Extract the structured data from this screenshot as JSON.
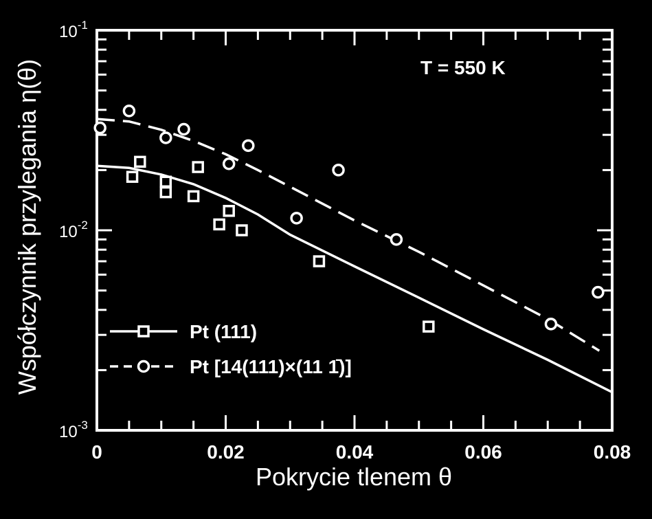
{
  "chart_data": {
    "type": "scatter",
    "title": "",
    "xlabel": "Pokrycie tlenem θ",
    "ylabel": "Współczynnik przylegania η(θ)",
    "annotation": "T = 550 K",
    "xlim": [
      0,
      0.08
    ],
    "ylim": [
      0.001,
      0.1
    ],
    "yscale": "log",
    "grid": false,
    "legend_position": "lower-left",
    "x_ticks": [
      "0",
      "0.02",
      "0.04",
      "0.06",
      "0.08"
    ],
    "x_tick_values": [
      0,
      0.02,
      0.04,
      0.06,
      0.08
    ],
    "y_ticks": [
      {
        "base": "10",
        "exp": "-1",
        "value": 0.1
      },
      {
        "base": "10",
        "exp": "-2",
        "value": 0.01
      },
      {
        "base": "10",
        "exp": "-3",
        "value": 0.001
      }
    ],
    "series": [
      {
        "name": "Pt (111)",
        "marker": "square",
        "line": "solid",
        "points": [
          [
            0.0055,
            0.0185
          ],
          [
            0.0067,
            0.022
          ],
          [
            0.0107,
            0.0175
          ],
          [
            0.0107,
            0.0155
          ],
          [
            0.015,
            0.0148
          ],
          [
            0.0157,
            0.0207
          ],
          [
            0.019,
            0.0107
          ],
          [
            0.0205,
            0.0125
          ],
          [
            0.0225,
            0.01
          ],
          [
            0.0345,
            0.007
          ],
          [
            0.0515,
            0.0033
          ]
        ],
        "fit": [
          [
            0,
            0.021
          ],
          [
            0.005,
            0.0205
          ],
          [
            0.01,
            0.019
          ],
          [
            0.015,
            0.017
          ],
          [
            0.02,
            0.0145
          ],
          [
            0.025,
            0.012
          ],
          [
            0.03,
            0.0095
          ],
          [
            0.04,
            0.0066
          ],
          [
            0.05,
            0.0046
          ],
          [
            0.06,
            0.0032
          ],
          [
            0.07,
            0.00225
          ],
          [
            0.08,
            0.00155
          ]
        ]
      },
      {
        "name": "Pt [14(111)×(11 1̄)]",
        "marker": "circle",
        "line": "dashed",
        "points": [
          [
            0.0005,
            0.0325
          ],
          [
            0.005,
            0.0395
          ],
          [
            0.0107,
            0.029
          ],
          [
            0.0135,
            0.032
          ],
          [
            0.0205,
            0.0215
          ],
          [
            0.0235,
            0.0265
          ],
          [
            0.031,
            0.0115
          ],
          [
            0.0375,
            0.02
          ],
          [
            0.0465,
            0.009
          ],
          [
            0.0705,
            0.0034
          ],
          [
            0.0778,
            0.0049
          ]
        ],
        "fit": [
          [
            0,
            0.036
          ],
          [
            0.005,
            0.035
          ],
          [
            0.01,
            0.0318
          ],
          [
            0.015,
            0.028
          ],
          [
            0.02,
            0.024
          ],
          [
            0.025,
            0.02
          ],
          [
            0.03,
            0.0165
          ],
          [
            0.04,
            0.0112
          ],
          [
            0.05,
            0.0078
          ],
          [
            0.06,
            0.0053
          ],
          [
            0.07,
            0.0036
          ],
          [
            0.078,
            0.0025
          ]
        ]
      }
    ]
  }
}
